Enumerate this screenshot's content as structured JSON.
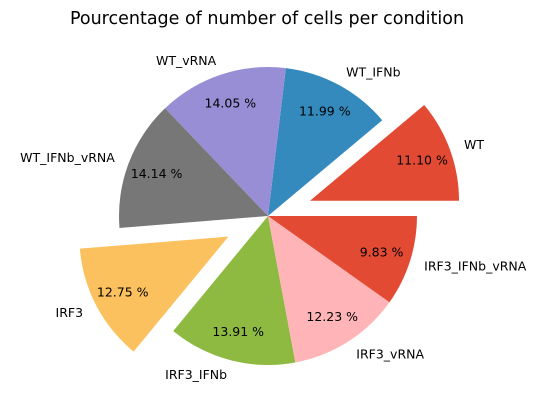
{
  "chart_data": {
    "type": "pie",
    "title": "Pourcentage of number of cells per condition",
    "start_angle_deg": 0,
    "direction": "counterclockwise",
    "slices": [
      {
        "label": "WT",
        "value": 11.1,
        "pct_label": "11.10 %",
        "color": "#E24A33",
        "explode": 0.3
      },
      {
        "label": "WT_IFNb",
        "value": 11.99,
        "pct_label": "11.99 %",
        "color": "#348ABD",
        "explode": 0
      },
      {
        "label": "WT_vRNA",
        "value": 14.05,
        "pct_label": "14.05 %",
        "color": "#988ED5",
        "explode": 0
      },
      {
        "label": "WT_IFNb_vRNA",
        "value": 14.14,
        "pct_label": "14.14 %",
        "color": "#777777",
        "explode": 0
      },
      {
        "label": "IRF3",
        "value": 12.75,
        "pct_label": "12.75 %",
        "color": "#FBC15E",
        "explode": 0.3
      },
      {
        "label": "IRF3_IFNb",
        "value": 13.91,
        "pct_label": "13.91 %",
        "color": "#8EBA42",
        "explode": 0
      },
      {
        "label": "IRF3_vRNA",
        "value": 12.23,
        "pct_label": "12.23 %",
        "color": "#FFB5B8",
        "explode": 0
      },
      {
        "label": "IRF3_IFNb_vRNA",
        "value": 9.83,
        "pct_label": "9.83 %",
        "color": "#E24A33",
        "explode": 0
      }
    ]
  }
}
